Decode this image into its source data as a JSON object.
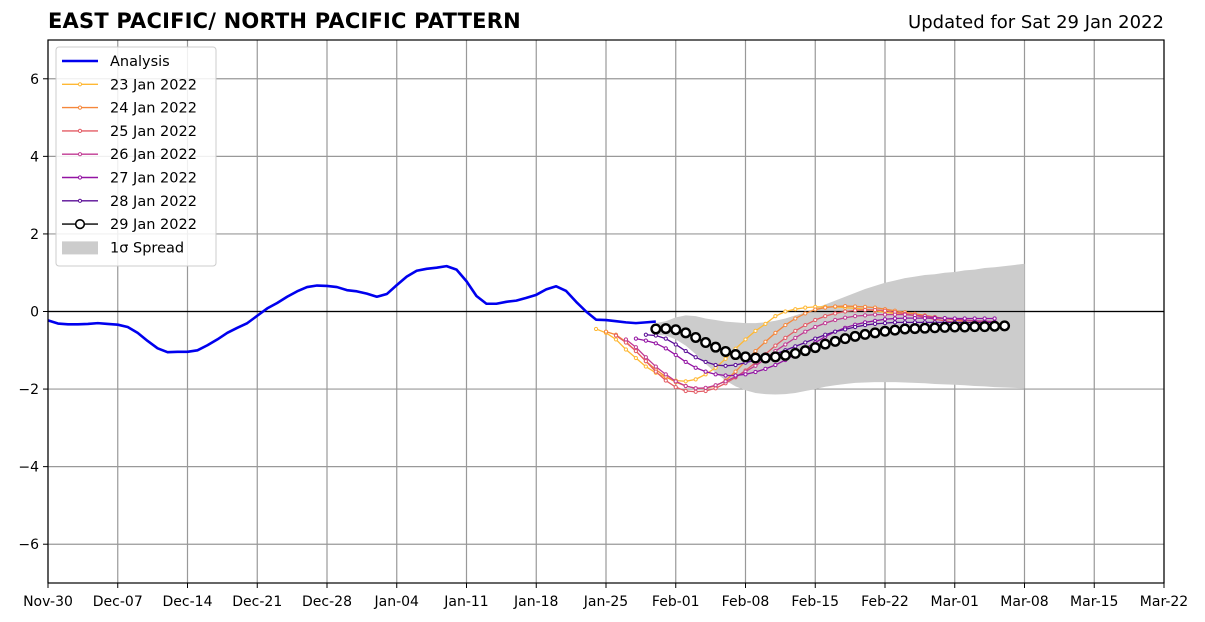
{
  "header": {
    "title": "EAST PACIFIC/ NORTH PACIFIC PATTERN",
    "updated": "Updated for Sat 29 Jan 2022"
  },
  "chart_data": {
    "type": "line",
    "title": "EAST PACIFIC/ NORTH PACIFIC PATTERN",
    "subtitle": "Updated for Sat 29 Jan 2022",
    "xlabel": "",
    "ylabel": "",
    "x_start": "2021-11-30",
    "x_end": "2022-03-22",
    "xlim": [
      "2021-11-30",
      "2022-03-22"
    ],
    "ylim": [
      -7,
      7
    ],
    "grid": true,
    "legend_position": "top-left",
    "xtick_labels": [
      "Nov-30",
      "Dec-07",
      "Dec-14",
      "Dec-21",
      "Dec-28",
      "Jan-04",
      "Jan-11",
      "Jan-18",
      "Jan-25",
      "Feb-01",
      "Feb-08",
      "Feb-15",
      "Feb-22",
      "Mar-01",
      "Mar-08",
      "Mar-15",
      "Mar-22"
    ],
    "xtick_dates": [
      "2021-11-30",
      "2021-12-07",
      "2021-12-14",
      "2021-12-21",
      "2021-12-28",
      "2022-01-04",
      "2022-01-11",
      "2022-01-18",
      "2022-01-25",
      "2022-02-01",
      "2022-02-08",
      "2022-02-15",
      "2022-02-22",
      "2022-03-01",
      "2022-03-08",
      "2022-03-15",
      "2022-03-22"
    ],
    "ytick_labels": [
      "−6",
      "−4",
      "−2",
      "0",
      "2",
      "4",
      "6"
    ],
    "ytick_values": [
      -6,
      -4,
      -2,
      0,
      2,
      4,
      6
    ],
    "analysis": {
      "name": "Analysis",
      "color": "#0000ee",
      "start_date": "2021-11-30",
      "values": [
        -0.23,
        -0.31,
        -0.33,
        -0.33,
        -0.32,
        -0.3,
        -0.32,
        -0.34,
        -0.4,
        -0.55,
        -0.76,
        -0.95,
        -1.05,
        -1.04,
        -1.04,
        -1.0,
        -0.87,
        -0.72,
        -0.55,
        -0.42,
        -0.3,
        -0.11,
        0.08,
        0.22,
        0.38,
        0.52,
        0.63,
        0.67,
        0.66,
        0.63,
        0.55,
        0.52,
        0.46,
        0.38,
        0.45,
        0.68,
        0.9,
        1.05,
        1.1,
        1.13,
        1.17,
        1.08,
        0.78,
        0.4,
        0.2,
        0.2,
        0.25,
        0.28,
        0.35,
        0.43,
        0.57,
        0.65,
        0.53,
        0.25,
        0.0,
        -0.21,
        -0.22,
        -0.25,
        -0.28,
        -0.3,
        -0.28,
        -0.26
      ]
    },
    "forecasts": [
      {
        "name": "23 Jan 2022",
        "color": "#ffb833",
        "start_date": "2022-01-24",
        "values": [
          -0.45,
          -0.55,
          -0.72,
          -0.98,
          -1.2,
          -1.42,
          -1.58,
          -1.7,
          -1.78,
          -1.8,
          -1.75,
          -1.62,
          -1.45,
          -1.22,
          -0.96,
          -0.72,
          -0.5,
          -0.32,
          -0.12,
          0.0,
          0.06,
          0.1,
          0.12,
          0.12,
          0.12,
          0.1,
          0.08,
          0.06,
          0.02,
          -0.02,
          -0.05,
          -0.08,
          -0.1,
          -0.12,
          -0.15,
          -0.18,
          -0.2,
          -0.22,
          -0.25,
          -0.28,
          -0.3,
          -0.32
        ]
      },
      {
        "name": "24 Jan 2022",
        "color": "#f5873b",
        "start_date": "2022-01-25",
        "values": [
          -0.52,
          -0.6,
          -0.78,
          -1.02,
          -1.28,
          -1.5,
          -1.68,
          -1.82,
          -1.92,
          -1.98,
          -1.98,
          -1.92,
          -1.78,
          -1.55,
          -1.28,
          -1.02,
          -0.78,
          -0.55,
          -0.35,
          -0.18,
          -0.05,
          0.05,
          0.1,
          0.13,
          0.14,
          0.13,
          0.12,
          0.1,
          0.06,
          0.02,
          -0.02,
          -0.06,
          -0.1,
          -0.14,
          -0.18,
          -0.22,
          -0.26,
          -0.3,
          -0.32,
          -0.34
        ]
      },
      {
        "name": "25 Jan 2022",
        "color": "#e35c65",
        "start_date": "2022-01-26",
        "values": [
          -0.62,
          -0.8,
          -1.02,
          -1.28,
          -1.55,
          -1.78,
          -1.95,
          -2.05,
          -2.07,
          -2.05,
          -1.98,
          -1.85,
          -1.7,
          -1.52,
          -1.32,
          -1.1,
          -0.88,
          -0.68,
          -0.5,
          -0.35,
          -0.22,
          -0.12,
          -0.05,
          0.0,
          0.03,
          0.04,
          0.04,
          0.02,
          -0.02,
          -0.06,
          -0.1,
          -0.15,
          -0.2,
          -0.24,
          -0.28,
          -0.32,
          -0.35,
          -0.37,
          -0.38
        ]
      },
      {
        "name": "26 Jan 2022",
        "color": "#c13a93",
        "start_date": "2022-01-27",
        "values": [
          -0.72,
          -0.92,
          -1.18,
          -1.42,
          -1.62,
          -1.8,
          -1.92,
          -1.98,
          -1.97,
          -1.9,
          -1.8,
          -1.68,
          -1.55,
          -1.4,
          -1.22,
          -1.02,
          -0.85,
          -0.68,
          -0.52,
          -0.4,
          -0.3,
          -0.22,
          -0.16,
          -0.12,
          -0.1,
          -0.08,
          -0.08,
          -0.08,
          -0.08,
          -0.1,
          -0.12,
          -0.15,
          -0.18,
          -0.2,
          -0.22,
          -0.24,
          -0.25,
          -0.26
        ]
      },
      {
        "name": "27 Jan 2022",
        "color": "#9313a3",
        "start_date": "2022-01-28",
        "values": [
          -0.7,
          -0.75,
          -0.82,
          -0.95,
          -1.12,
          -1.3,
          -1.45,
          -1.55,
          -1.62,
          -1.65,
          -1.65,
          -1.62,
          -1.56,
          -1.48,
          -1.38,
          -1.25,
          -1.1,
          -0.95,
          -0.8,
          -0.65,
          -0.52,
          -0.42,
          -0.34,
          -0.28,
          -0.24,
          -0.2,
          -0.18,
          -0.17,
          -0.17,
          -0.17,
          -0.17,
          -0.17,
          -0.18,
          -0.18,
          -0.18,
          -0.18,
          -0.18
        ]
      },
      {
        "name": "28 Jan 2022",
        "color": "#5a0d96",
        "start_date": "2022-01-29",
        "values": [
          -0.6,
          -0.62,
          -0.7,
          -0.85,
          -1.02,
          -1.18,
          -1.3,
          -1.38,
          -1.4,
          -1.38,
          -1.32,
          -1.25,
          -1.18,
          -1.1,
          -1.0,
          -0.9,
          -0.8,
          -0.7,
          -0.6,
          -0.52,
          -0.46,
          -0.4,
          -0.35,
          -0.32,
          -0.3,
          -0.28,
          -0.28,
          -0.28,
          -0.28,
          -0.28,
          -0.28,
          -0.28,
          -0.28,
          -0.28,
          -0.28,
          -0.28
        ]
      },
      {
        "name": "29 Jan 2022",
        "color": "#000000",
        "start_date": "2022-01-30",
        "values": [
          -0.45,
          -0.44,
          -0.47,
          -0.55,
          -0.67,
          -0.8,
          -0.92,
          -1.03,
          -1.11,
          -1.17,
          -1.2,
          -1.2,
          -1.17,
          -1.13,
          -1.08,
          -1.01,
          -0.93,
          -0.84,
          -0.77,
          -0.7,
          -0.64,
          -0.59,
          -0.55,
          -0.51,
          -0.48,
          -0.45,
          -0.44,
          -0.43,
          -0.42,
          -0.41,
          -0.4,
          -0.4,
          -0.39,
          -0.39,
          -0.38,
          -0.37
        ]
      }
    ],
    "spread": {
      "name": "1σ Spread",
      "color": "#cccccc",
      "start_date": "2022-01-30",
      "upper": [
        -0.3,
        -0.25,
        -0.15,
        -0.1,
        -0.12,
        -0.18,
        -0.22,
        -0.26,
        -0.28,
        -0.3,
        -0.3,
        -0.28,
        -0.24,
        -0.18,
        -0.1,
        -0.02,
        0.08,
        0.18,
        0.28,
        0.38,
        0.48,
        0.58,
        0.66,
        0.74,
        0.8,
        0.86,
        0.9,
        0.94,
        0.96,
        1.0,
        1.02,
        1.06,
        1.08,
        1.12,
        1.14,
        1.17,
        1.2,
        1.23
      ],
      "lower": [
        -0.6,
        -0.62,
        -0.72,
        -0.88,
        -1.1,
        -1.35,
        -1.58,
        -1.78,
        -1.93,
        -2.03,
        -2.1,
        -2.13,
        -2.14,
        -2.13,
        -2.1,
        -2.05,
        -2.0,
        -1.94,
        -1.9,
        -1.87,
        -1.84,
        -1.83,
        -1.82,
        -1.82,
        -1.82,
        -1.83,
        -1.84,
        -1.85,
        -1.87,
        -1.88,
        -1.89,
        -1.9,
        -1.92,
        -1.93,
        -1.95,
        -1.96,
        -1.97,
        -1.98
      ]
    },
    "legend": [
      "Analysis",
      "23 Jan 2022",
      "24 Jan 2022",
      "25 Jan 2022",
      "26 Jan 2022",
      "27 Jan 2022",
      "28 Jan 2022",
      "29 Jan 2022",
      "1σ Spread"
    ]
  }
}
